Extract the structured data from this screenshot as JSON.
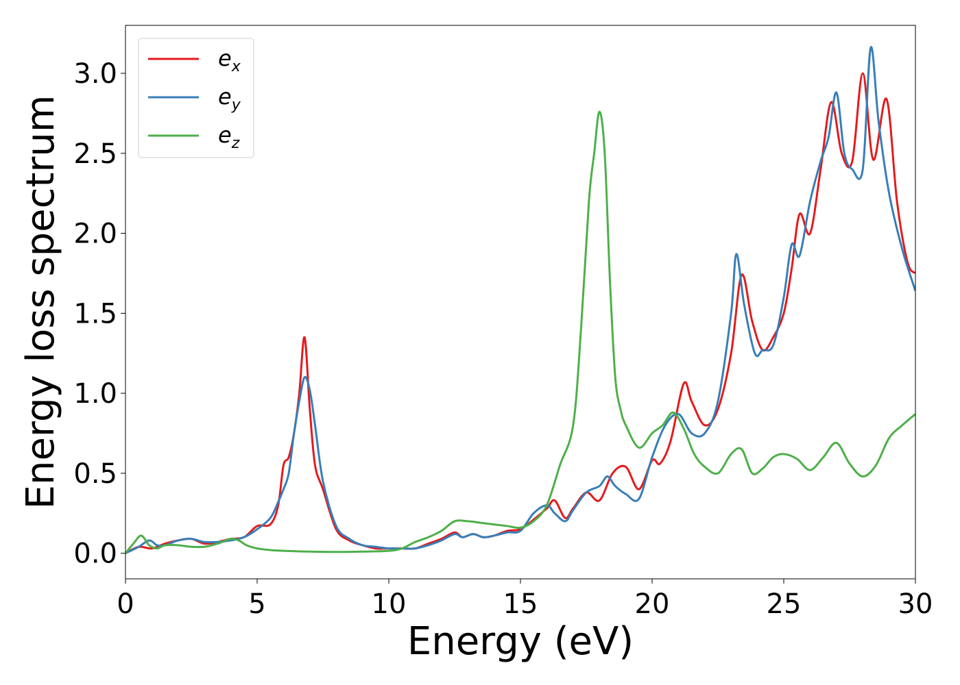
{
  "chart_data": {
    "type": "line",
    "title": "",
    "xlabel": "Energy (eV)",
    "ylabel": "Energy loss spectrum",
    "xlim": [
      0,
      30
    ],
    "ylim": [
      -0.16,
      3.3
    ],
    "xticks": [
      0,
      5,
      10,
      15,
      20,
      25,
      30
    ],
    "xtick_labels": [
      "0",
      "5",
      "10",
      "15",
      "20",
      "25",
      "30"
    ],
    "yticks": [
      0.0,
      0.5,
      1.0,
      1.5,
      2.0,
      2.5,
      3.0
    ],
    "ytick_labels": [
      "0.0",
      "0.5",
      "1.0",
      "1.5",
      "2.0",
      "2.5",
      "3.0"
    ],
    "grid": false,
    "legend_position": "top-left",
    "series": [
      {
        "name": "e",
        "subscript": "x",
        "color": "#e41a1c",
        "x": [
          0,
          0.5,
          1.0,
          1.5,
          2.0,
          2.5,
          3.0,
          3.5,
          4.0,
          4.5,
          5.0,
          5.5,
          5.8,
          6.0,
          6.2,
          6.4,
          6.6,
          6.8,
          7.0,
          7.2,
          7.5,
          8.0,
          8.5,
          9.0,
          9.5,
          10.0,
          10.5,
          11.0,
          11.5,
          12.0,
          12.5,
          12.8,
          13.2,
          13.6,
          14.0,
          14.5,
          15.0,
          15.5,
          16.0,
          16.3,
          16.7,
          17.0,
          17.5,
          18.0,
          18.5,
          19.0,
          19.5,
          20.0,
          20.3,
          20.7,
          21.2,
          21.5,
          22.0,
          22.5,
          23.0,
          23.4,
          23.8,
          24.2,
          24.6,
          25.0,
          25.3,
          25.6,
          26.0,
          26.4,
          26.8,
          27.2,
          27.6,
          28.0,
          28.4,
          28.9,
          29.3,
          29.7,
          30.0
        ],
        "y": [
          0.0,
          0.04,
          0.03,
          0.06,
          0.08,
          0.09,
          0.06,
          0.07,
          0.09,
          0.1,
          0.17,
          0.18,
          0.3,
          0.55,
          0.6,
          0.75,
          1.0,
          1.35,
          0.9,
          0.55,
          0.4,
          0.15,
          0.08,
          0.05,
          0.03,
          0.03,
          0.03,
          0.03,
          0.06,
          0.09,
          0.13,
          0.1,
          0.12,
          0.1,
          0.11,
          0.14,
          0.15,
          0.21,
          0.28,
          0.33,
          0.22,
          0.28,
          0.38,
          0.33,
          0.5,
          0.54,
          0.4,
          0.58,
          0.56,
          0.7,
          1.06,
          0.95,
          0.8,
          0.9,
          1.25,
          1.74,
          1.45,
          1.27,
          1.35,
          1.5,
          1.78,
          2.12,
          2.0,
          2.4,
          2.82,
          2.5,
          2.45,
          3.0,
          2.46,
          2.84,
          2.2,
          1.82,
          1.75
        ]
      },
      {
        "name": "e",
        "subscript": "y",
        "color": "#377eb8",
        "x": [
          0,
          0.5,
          0.9,
          1.2,
          1.5,
          2.0,
          2.5,
          3.0,
          3.5,
          4.0,
          4.5,
          5.0,
          5.5,
          5.8,
          6.0,
          6.2,
          6.4,
          6.6,
          6.8,
          7.0,
          7.2,
          7.5,
          8.0,
          8.5,
          9.0,
          9.5,
          10.0,
          10.5,
          11.0,
          11.5,
          12.0,
          12.5,
          12.8,
          13.2,
          13.6,
          14.0,
          14.5,
          15.0,
          15.5,
          16.0,
          16.3,
          16.7,
          17.0,
          17.5,
          18.0,
          18.3,
          18.6,
          19.0,
          19.5,
          20.0,
          20.5,
          21.0,
          21.5,
          22.0,
          22.5,
          23.0,
          23.2,
          23.5,
          23.9,
          24.2,
          24.6,
          25.0,
          25.3,
          25.6,
          26.0,
          26.4,
          26.7,
          27.0,
          27.3,
          27.6,
          28.0,
          28.3,
          28.6,
          29.0,
          29.5,
          30.0
        ],
        "y": [
          0.0,
          0.04,
          0.08,
          0.05,
          0.05,
          0.08,
          0.09,
          0.07,
          0.07,
          0.08,
          0.1,
          0.15,
          0.22,
          0.32,
          0.4,
          0.5,
          0.75,
          0.95,
          1.1,
          1.02,
          0.8,
          0.45,
          0.17,
          0.09,
          0.05,
          0.04,
          0.03,
          0.03,
          0.03,
          0.05,
          0.08,
          0.12,
          0.1,
          0.12,
          0.1,
          0.11,
          0.13,
          0.14,
          0.25,
          0.3,
          0.25,
          0.2,
          0.27,
          0.38,
          0.42,
          0.48,
          0.42,
          0.37,
          0.34,
          0.6,
          0.8,
          0.87,
          0.75,
          0.75,
          0.95,
          1.5,
          1.87,
          1.55,
          1.25,
          1.27,
          1.3,
          1.6,
          1.93,
          1.86,
          2.2,
          2.45,
          2.6,
          2.88,
          2.5,
          2.4,
          2.4,
          3.16,
          2.7,
          2.25,
          1.9,
          1.64
        ]
      },
      {
        "name": "e",
        "subscript": "z",
        "color": "#4daf4a",
        "x": [
          0,
          0.3,
          0.6,
          0.9,
          1.2,
          1.5,
          2.0,
          2.5,
          3.0,
          3.5,
          4.0,
          4.3,
          4.6,
          5.0,
          5.5,
          6.0,
          7.0,
          8.0,
          9.0,
          10.0,
          10.5,
          11.0,
          11.5,
          12.0,
          12.5,
          13.0,
          13.5,
          14.0,
          14.5,
          15.0,
          15.5,
          16.0,
          16.5,
          17.0,
          17.3,
          17.6,
          17.8,
          18.0,
          18.2,
          18.4,
          18.6,
          18.8,
          19.0,
          19.5,
          20.0,
          20.4,
          20.8,
          21.2,
          21.6,
          22.0,
          22.5,
          23.0,
          23.4,
          23.8,
          24.2,
          24.6,
          25.0,
          25.5,
          26.0,
          26.5,
          27.0,
          27.5,
          28.0,
          28.5,
          29.0,
          29.5,
          30.0
        ],
        "y": [
          0.0,
          0.06,
          0.11,
          0.05,
          0.03,
          0.05,
          0.05,
          0.04,
          0.04,
          0.06,
          0.09,
          0.08,
          0.05,
          0.03,
          0.02,
          0.015,
          0.01,
          0.008,
          0.01,
          0.015,
          0.03,
          0.07,
          0.1,
          0.14,
          0.2,
          0.2,
          0.19,
          0.18,
          0.17,
          0.16,
          0.2,
          0.3,
          0.55,
          0.8,
          1.4,
          2.2,
          2.5,
          2.76,
          2.5,
          1.7,
          1.1,
          0.9,
          0.8,
          0.66,
          0.75,
          0.8,
          0.88,
          0.78,
          0.62,
          0.54,
          0.5,
          0.62,
          0.65,
          0.5,
          0.53,
          0.6,
          0.62,
          0.59,
          0.52,
          0.6,
          0.69,
          0.56,
          0.48,
          0.55,
          0.72,
          0.8,
          0.87
        ]
      }
    ]
  }
}
